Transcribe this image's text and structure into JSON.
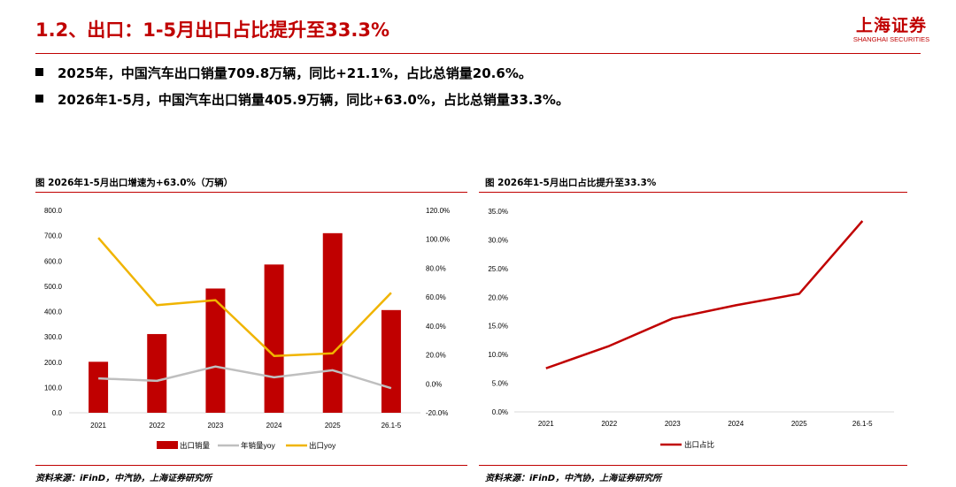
{
  "header": {
    "title": "1.2、出口：1-5月出口占比提升至33.3%",
    "logo_cn": "上海证券",
    "logo_en": "SHANGHAI SECURITIES"
  },
  "bullets": [
    "2025年，中国汽车出口销量709.8万辆，同比+21.1%，占比总销量20.6%。",
    "2026年1-5月，中国汽车出口销量405.9万辆，同比+63.0%，占比总销量33.3%。"
  ],
  "colors": {
    "accent": "#c00000",
    "bar": "#c00000",
    "gray_line": "#bfbfbf",
    "gold_line": "#f0b400",
    "share_line": "#c00000"
  },
  "chart_data": [
    {
      "type": "bar",
      "title": "图 2026年1-5月出口增速为+63.0%（万辆）",
      "source": "资料来源：iFinD，中汽协，上海证券研究所",
      "categories": [
        "2021",
        "2022",
        "2023",
        "2024",
        "2025",
        "26.1-5"
      ],
      "y_left": {
        "min": 0,
        "max": 800,
        "ticks": [
          "800.0",
          "700.0",
          "600.0",
          "500.0",
          "400.0",
          "300.0",
          "200.0",
          "100.0",
          "0.0"
        ]
      },
      "y_right": {
        "min": -20,
        "max": 120,
        "ticks": [
          "120.0%",
          "100.0%",
          "80.0%",
          "60.0%",
          "40.0%",
          "20.0%",
          "0.0%",
          "-20.0%"
        ]
      },
      "series": [
        {
          "name": "出口销量",
          "kind": "bar",
          "axis": "left",
          "values": [
            201.5,
            311.1,
            491.0,
            585.9,
            709.8,
            405.9
          ]
        },
        {
          "name": "年销量yoy",
          "kind": "line",
          "axis": "right",
          "values": [
            3.8,
            2.1,
            12.0,
            4.5,
            9.4,
            -3.0
          ]
        },
        {
          "name": "出口yoy",
          "kind": "line",
          "axis": "right",
          "values": [
            101.0,
            54.4,
            57.9,
            19.3,
            21.1,
            63.0
          ]
        }
      ],
      "legend": "bottom",
      "grid": false
    },
    {
      "type": "line",
      "title": "图 2026年1-5月出口占比提升至33.3%",
      "source": "资料来源：iFinD，中汽协，上海证券研究所",
      "categories": [
        "2021",
        "2022",
        "2023",
        "2024",
        "2025",
        "26.1-5"
      ],
      "y": {
        "min": 0,
        "max": 35,
        "ticks": [
          "35.0%",
          "30.0%",
          "25.0%",
          "20.0%",
          "15.0%",
          "10.0%",
          "5.0%",
          "0.0%"
        ]
      },
      "series": [
        {
          "name": "出口占比",
          "values": [
            7.6,
            11.5,
            16.3,
            18.6,
            20.6,
            33.3
          ]
        }
      ],
      "legend": "bottom",
      "grid": false
    }
  ]
}
